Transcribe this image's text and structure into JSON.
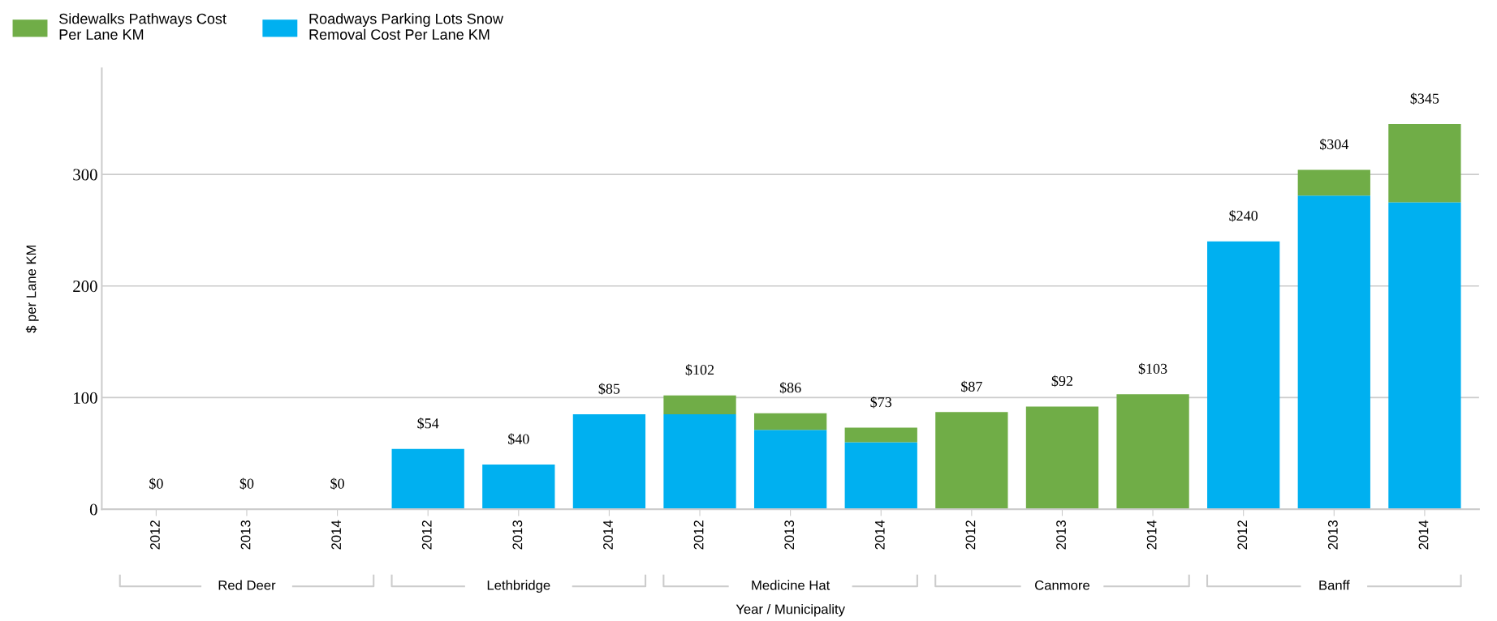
{
  "chart_data": {
    "type": "bar",
    "stacked": true,
    "xlabel": "Year / Municipality",
    "ylabel": "$ per Lane KM",
    "categories": [
      "2012",
      "2013",
      "2014",
      "2012",
      "2013",
      "2014",
      "2012",
      "2013",
      "2014",
      "2012",
      "2013",
      "2014",
      "2012",
      "2013",
      "2014"
    ],
    "series": [
      {
        "name": "Roadways Parking Lots Snow Removal Cost Per Lane KM",
        "color": "#00b0f0",
        "values": [
          0,
          0,
          0,
          54,
          40,
          85,
          85,
          71,
          60,
          0,
          0,
          0,
          240,
          281,
          275
        ]
      },
      {
        "name": "Sidewalks Pathways Cost Per Lane KM",
        "color": "#70ad47",
        "values": [
          0,
          0,
          0,
          0,
          0,
          0,
          17,
          15,
          13,
          87,
          92,
          103,
          0,
          23,
          70
        ]
      }
    ],
    "totals": [
      "$0",
      "$0",
      "$0",
      "$54",
      "$40",
      "$85",
      "$102",
      "$86",
      "$73",
      "$87",
      "$92",
      "$103",
      "$240",
      "$304",
      "$345"
    ],
    "annotations": [
      "Red Deer",
      "Lethbridge",
      "Medicine Hat",
      "Canmore",
      "Banff"
    ],
    "ylim": [
      0,
      395
    ],
    "yticks": [
      0,
      100,
      200,
      300
    ],
    "grid": "y",
    "legend": "top left"
  }
}
